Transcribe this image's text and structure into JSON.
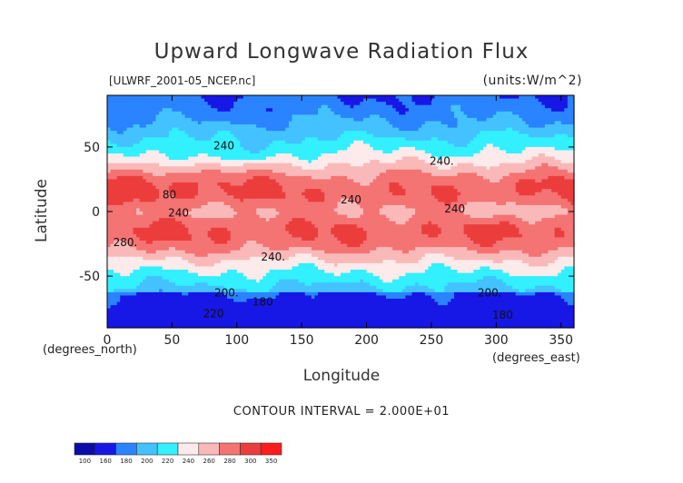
{
  "chart_data": {
    "type": "heatmap",
    "title": "Upward Longwave Radiation Flux",
    "file_label": "[ULWRF_2001-05_NCEP.nc]",
    "units_label": "(units:W/m^2)",
    "xlabel": "Longitude",
    "ylabel": "Latitude",
    "x_unit_left": "(degrees_north)",
    "x_unit_right": "(degrees_east)",
    "xlim": [
      0,
      360
    ],
    "ylim": [
      -90,
      90
    ],
    "x_ticks": [
      0,
      50,
      100,
      150,
      200,
      250,
      300,
      350
    ],
    "y_ticks": [
      -50,
      0,
      50
    ],
    "contour_interval_text": "CONTOUR INTERVAL = 2.000E+01",
    "colorbar": {
      "ticks": [
        "100",
        "160",
        "180",
        "200",
        "220",
        "240",
        "260",
        "280",
        "300",
        "350"
      ],
      "colors": [
        "#0c0ca8",
        "#1717e6",
        "#2a83ff",
        "#43c2ff",
        "#33f0ff",
        "#fdeaea",
        "#f9b9b9",
        "#f47373",
        "#ec3d3d",
        "#ff1c1c"
      ]
    },
    "contour_labels": [
      {
        "text": "240",
        "x": 90,
        "y": 51
      },
      {
        "text": "240.",
        "x": 258,
        "y": 39
      },
      {
        "text": "80",
        "x": 48,
        "y": 13
      },
      {
        "text": "240",
        "x": 188,
        "y": 9
      },
      {
        "text": "240",
        "x": 268,
        "y": 2
      },
      {
        "text": "240",
        "x": 55,
        "y": -1
      },
      {
        "text": "280.",
        "x": 14,
        "y": -24
      },
      {
        "text": "240.",
        "x": 128,
        "y": -35
      },
      {
        "text": "200.",
        "x": 92,
        "y": -63
      },
      {
        "text": "200.",
        "x": 295,
        "y": -63
      },
      {
        "text": "180",
        "x": 120,
        "y": -70
      },
      {
        "text": "180",
        "x": 305,
        "y": -80
      },
      {
        "text": "220",
        "x": 82,
        "y": -79
      }
    ]
  }
}
